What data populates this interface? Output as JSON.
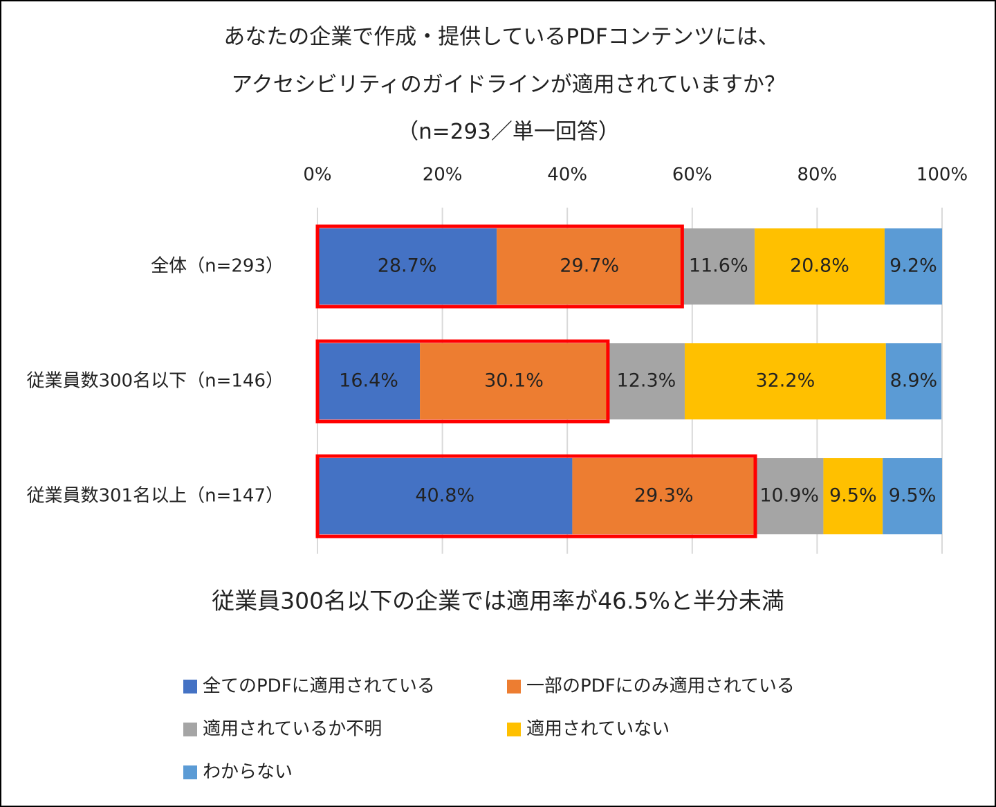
{
  "chart_data": {
    "type": "stacked_barh",
    "title": [
      "あなたの企業で作成・提供しているPDFコンテンツには、",
      "アクセシビリティのガイドラインが適用されていますか？"
    ],
    "subtitle": "（n=293／単一回答）",
    "categories": [
      "全体（n=293）",
      "従業員数300名以下（n=146）",
      "従業員数301名以上（n=147）"
    ],
    "series": [
      {
        "name": "全てのPDFに適用されている",
        "color": "#4472c4",
        "values": [
          28.7,
          16.4,
          40.8
        ],
        "value_labels": [
          "28.7%",
          "16.4%",
          "40.8%"
        ]
      },
      {
        "name": "一部のPDFにのみ適用されている",
        "color": "#ed7d31",
        "values": [
          29.7,
          30.1,
          29.3
        ],
        "value_labels": [
          "29.7%",
          "30.1%",
          "29.3%"
        ]
      },
      {
        "name": "適用されているか不明",
        "color": "#a5a5a5",
        "values": [
          11.6,
          12.3,
          10.9
        ],
        "value_labels": [
          "11.6%",
          "12.3%",
          "10.9%"
        ]
      },
      {
        "name": "適用されていない",
        "color": "#ffc000",
        "values": [
          20.8,
          32.2,
          9.5
        ],
        "value_labels": [
          "20.8%",
          "32.2%",
          "9.5%"
        ]
      },
      {
        "name": "わからない",
        "color": "#5b9bd5",
        "values": [
          9.2,
          8.9,
          9.5
        ],
        "value_labels": [
          "9.2%",
          "8.9%",
          "9.5%"
        ]
      }
    ],
    "xlim": [
      0,
      100
    ],
    "xticks": [
      {
        "value": 0,
        "label": "0%"
      },
      {
        "value": 20,
        "label": "20%"
      },
      {
        "value": 40,
        "label": "40%"
      },
      {
        "value": 60,
        "label": "60%"
      },
      {
        "value": 80,
        "label": "80%"
      },
      {
        "value": 100,
        "label": "100%"
      }
    ],
    "grid": true,
    "highlight": {
      "series": [
        0,
        1
      ],
      "color": "#ff0000"
    },
    "annotation": "従業員300名以下の企業では適用率が46.5%と半分未満",
    "annotation_color": "#ff0000",
    "legend": "bottom"
  }
}
